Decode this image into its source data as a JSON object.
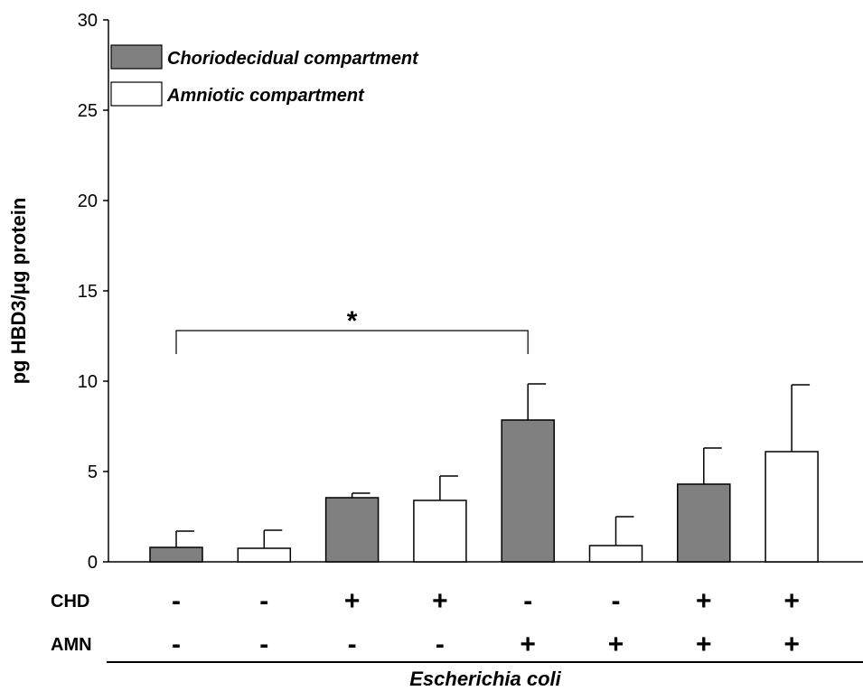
{
  "chart_data": {
    "type": "bar",
    "ylabel": "pg HBD3/μg protein",
    "xlabel": "Escherichia coli",
    "ylim": [
      0,
      30
    ],
    "yticks": [
      0,
      5,
      10,
      15,
      20,
      25,
      30
    ],
    "grid": false,
    "legend_position": "top-left",
    "series": [
      {
        "name": "Choriodecidual compartment",
        "color": "#808080"
      },
      {
        "name": "Amniotic compartment",
        "color": "#ffffff"
      }
    ],
    "bars": [
      {
        "series": 0,
        "value": 0.8,
        "error": 0.9
      },
      {
        "series": 1,
        "value": 0.75,
        "error": 1.0
      },
      {
        "series": 0,
        "value": 3.55,
        "error": 0.25
      },
      {
        "series": 1,
        "value": 3.4,
        "error": 1.35
      },
      {
        "series": 0,
        "value": 7.85,
        "error": 2.0
      },
      {
        "series": 1,
        "value": 0.9,
        "error": 1.6
      },
      {
        "series": 0,
        "value": 4.3,
        "error": 2.0
      },
      {
        "series": 1,
        "value": 6.1,
        "error": 3.7
      }
    ],
    "conditions": [
      {
        "label": "CHD",
        "signs": [
          "-",
          "-",
          "+",
          "+",
          "-",
          "-",
          "+",
          "+"
        ]
      },
      {
        "label": "AMN",
        "signs": [
          "-",
          "-",
          "-",
          "-",
          "+",
          "+",
          "+",
          "+"
        ]
      }
    ],
    "annotations": [
      {
        "type": "significance-bracket",
        "from_bar": 1,
        "to_bar": 5,
        "text": "*",
        "y": 12.8
      }
    ]
  }
}
